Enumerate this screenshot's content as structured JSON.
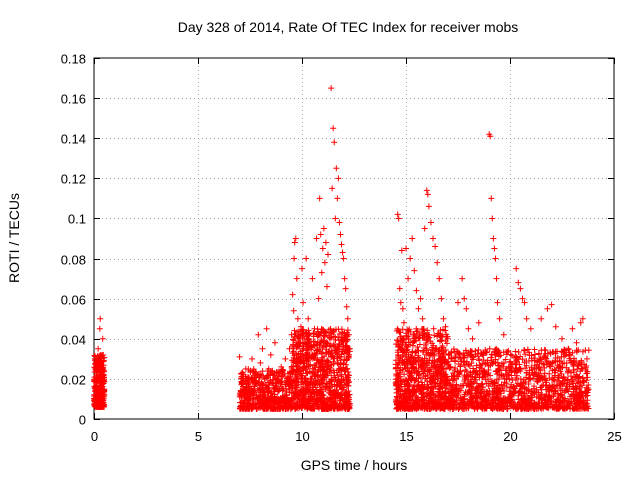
{
  "chart_data": {
    "type": "scatter",
    "title": "Day 328 of 2014, Rate Of TEC Index for receiver mobs",
    "xlabel": "GPS time / hours",
    "ylabel": "ROTI / TECUs",
    "xlim": [
      0,
      25
    ],
    "ylim": [
      0,
      0.18
    ],
    "xticks": [
      0,
      5,
      10,
      15,
      20,
      25
    ],
    "xtick_labels": [
      "0",
      "5",
      "10",
      "15",
      "20",
      "25"
    ],
    "yticks": [
      0,
      0.02,
      0.04,
      0.06,
      0.08,
      0.1,
      0.12,
      0.14,
      0.16,
      0.18
    ],
    "ytick_labels": [
      "0",
      "0.02",
      "0.04",
      "0.06",
      "0.08",
      "0.1",
      "0.12",
      "0.14",
      "0.16",
      "0.18"
    ],
    "grid": true,
    "marker": "+",
    "color": "#ff0000",
    "series": [
      {
        "name": "ROTI",
        "points": [
          [
            0.05,
            0.03
          ],
          [
            0.08,
            0.018
          ],
          [
            0.1,
            0.012
          ],
          [
            0.12,
            0.025
          ],
          [
            0.15,
            0.008
          ],
          [
            0.18,
            0.02
          ],
          [
            0.2,
            0.035
          ],
          [
            0.22,
            0.015
          ],
          [
            0.25,
            0.01
          ],
          [
            0.28,
            0.045
          ],
          [
            0.3,
            0.05
          ],
          [
            0.32,
            0.022
          ],
          [
            0.35,
            0.028
          ],
          [
            0.38,
            0.012
          ],
          [
            0.4,
            0.018
          ],
          [
            0.42,
            0.04
          ],
          [
            7.0,
            0.031
          ],
          [
            7.1,
            0.02
          ],
          [
            7.2,
            0.012
          ],
          [
            7.3,
            0.025
          ],
          [
            7.4,
            0.01
          ],
          [
            7.5,
            0.018
          ],
          [
            7.6,
            0.03
          ],
          [
            7.7,
            0.015
          ],
          [
            7.8,
            0.022
          ],
          [
            7.9,
            0.042
          ],
          [
            8.0,
            0.028
          ],
          [
            8.1,
            0.035
          ],
          [
            8.2,
            0.012
          ],
          [
            8.3,
            0.045
          ],
          [
            8.4,
            0.025
          ],
          [
            8.5,
            0.032
          ],
          [
            8.6,
            0.018
          ],
          [
            8.7,
            0.038
          ],
          [
            8.8,
            0.02
          ],
          [
            8.9,
            0.015
          ],
          [
            9.0,
            0.026
          ],
          [
            9.1,
            0.01
          ],
          [
            9.2,
            0.03
          ],
          [
            9.3,
            0.018
          ],
          [
            9.4,
            0.035
          ],
          [
            9.5,
            0.042
          ],
          [
            9.55,
            0.062
          ],
          [
            9.6,
            0.054
          ],
          [
            9.62,
            0.08
          ],
          [
            9.65,
            0.088
          ],
          [
            9.7,
            0.09
          ],
          [
            9.75,
            0.07
          ],
          [
            9.8,
            0.05
          ],
          [
            9.85,
            0.036
          ],
          [
            9.9,
            0.028
          ],
          [
            9.95,
            0.046
          ],
          [
            10.0,
            0.075
          ],
          [
            10.05,
            0.058
          ],
          [
            10.1,
            0.04
          ],
          [
            10.2,
            0.08
          ],
          [
            10.25,
            0.03
          ],
          [
            10.3,
            0.05
          ],
          [
            10.4,
            0.02
          ],
          [
            10.5,
            0.07
          ],
          [
            10.6,
            0.045
          ],
          [
            10.7,
            0.09
          ],
          [
            10.8,
            0.06
          ],
          [
            10.85,
            0.11
          ],
          [
            10.9,
            0.092
          ],
          [
            10.95,
            0.073
          ],
          [
            11.0,
            0.085
          ],
          [
            11.05,
            0.095
          ],
          [
            11.1,
            0.078
          ],
          [
            11.15,
            0.088
          ],
          [
            11.2,
            0.066
          ],
          [
            11.25,
            0.082
          ],
          [
            11.35,
            0.04
          ],
          [
            11.4,
            0.165
          ],
          [
            11.45,
            0.115
          ],
          [
            11.5,
            0.145
          ],
          [
            11.55,
            0.138
          ],
          [
            11.6,
            0.1
          ],
          [
            11.65,
            0.125
          ],
          [
            11.7,
            0.11
          ],
          [
            11.75,
            0.12
          ],
          [
            11.8,
            0.098
          ],
          [
            11.85,
            0.092
          ],
          [
            11.9,
            0.087
          ],
          [
            11.95,
            0.083
          ],
          [
            12.0,
            0.08
          ],
          [
            12.05,
            0.07
          ],
          [
            12.1,
            0.065
          ],
          [
            12.15,
            0.056
          ],
          [
            12.2,
            0.05
          ],
          [
            12.25,
            0.042
          ],
          [
            12.3,
            0.035
          ],
          [
            14.6,
            0.102
          ],
          [
            14.65,
            0.1
          ],
          [
            14.7,
            0.065
          ],
          [
            14.75,
            0.058
          ],
          [
            14.8,
            0.084
          ],
          [
            14.85,
            0.055
          ],
          [
            14.9,
            0.048
          ],
          [
            15.0,
            0.085
          ],
          [
            15.1,
            0.07
          ],
          [
            15.2,
            0.08
          ],
          [
            15.3,
            0.09
          ],
          [
            15.4,
            0.074
          ],
          [
            15.5,
            0.064
          ],
          [
            15.6,
            0.055
          ],
          [
            15.7,
            0.06
          ],
          [
            15.8,
            0.05
          ],
          [
            15.9,
            0.095
          ],
          [
            16.0,
            0.114
          ],
          [
            16.05,
            0.112
          ],
          [
            16.1,
            0.106
          ],
          [
            16.2,
            0.098
          ],
          [
            16.3,
            0.09
          ],
          [
            16.4,
            0.086
          ],
          [
            16.5,
            0.078
          ],
          [
            16.6,
            0.07
          ],
          [
            16.7,
            0.06
          ],
          [
            16.8,
            0.05
          ],
          [
            16.9,
            0.046
          ],
          [
            17.0,
            0.04
          ],
          [
            17.5,
            0.058
          ],
          [
            17.7,
            0.07
          ],
          [
            17.8,
            0.06
          ],
          [
            17.9,
            0.055
          ],
          [
            18.0,
            0.045
          ],
          [
            18.2,
            0.04
          ],
          [
            18.5,
            0.048
          ],
          [
            19.0,
            0.142
          ],
          [
            19.05,
            0.141
          ],
          [
            19.1,
            0.11
          ],
          [
            19.15,
            0.1
          ],
          [
            19.2,
            0.09
          ],
          [
            19.25,
            0.085
          ],
          [
            19.3,
            0.08
          ],
          [
            19.35,
            0.07
          ],
          [
            19.4,
            0.058
          ],
          [
            19.5,
            0.05
          ],
          [
            19.7,
            0.042
          ],
          [
            20.3,
            0.075
          ],
          [
            20.4,
            0.068
          ],
          [
            20.5,
            0.065
          ],
          [
            20.6,
            0.06
          ],
          [
            20.7,
            0.058
          ],
          [
            20.8,
            0.05
          ],
          [
            21.0,
            0.045
          ],
          [
            21.5,
            0.05
          ],
          [
            21.8,
            0.055
          ],
          [
            22.0,
            0.057
          ],
          [
            22.2,
            0.046
          ],
          [
            22.5,
            0.04
          ],
          [
            22.8,
            0.035
          ],
          [
            23.0,
            0.045
          ],
          [
            23.2,
            0.038
          ],
          [
            23.4,
            0.048
          ],
          [
            23.5,
            0.05
          ],
          [
            23.7,
            0.03
          ]
        ]
      }
    ],
    "dense_bands": [
      {
        "x_start": 0.0,
        "x_end": 0.5,
        "y_min": 0.006,
        "y_max": 0.032,
        "count": 320
      },
      {
        "x_start": 7.0,
        "x_end": 9.5,
        "y_min": 0.005,
        "y_max": 0.025,
        "count": 520
      },
      {
        "x_start": 9.5,
        "x_end": 12.3,
        "y_min": 0.005,
        "y_max": 0.045,
        "count": 900
      },
      {
        "x_start": 14.5,
        "x_end": 17.0,
        "y_min": 0.005,
        "y_max": 0.045,
        "count": 800
      },
      {
        "x_start": 17.0,
        "x_end": 23.8,
        "y_min": 0.005,
        "y_max": 0.035,
        "count": 1300
      }
    ]
  }
}
